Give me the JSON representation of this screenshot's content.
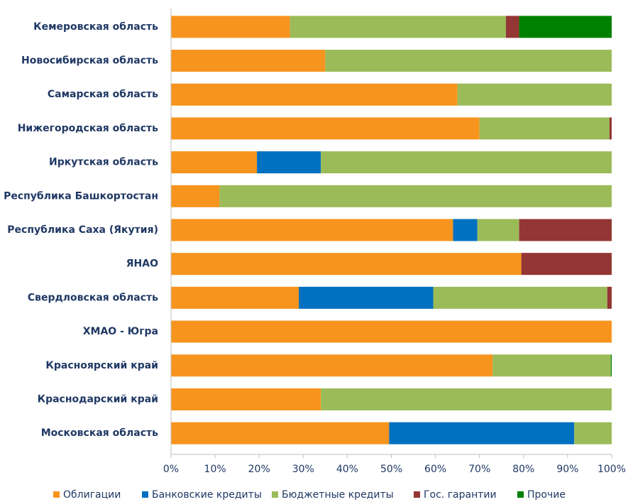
{
  "chart_data": {
    "type": "stacked_barh",
    "categories": [
      "Кемеровская область",
      "Новосибирская область",
      "Самарская область",
      "Нижегородская область",
      "Иркутская область",
      "Республика Башкортостан",
      "Республика Саха (Якутия)",
      "ЯНАО",
      "Свердловская область",
      "ХМАО - Югра",
      "Красноярский край",
      "Краснодарский край",
      "Московская область"
    ],
    "series": [
      {
        "name": "Облигации",
        "color": "#f7941d",
        "values": [
          27,
          35,
          65,
          70,
          19.5,
          11,
          64,
          79.5,
          29,
          100,
          73,
          34,
          49.5
        ]
      },
      {
        "name": "Банковские кредиты",
        "color": "#0070c0",
        "values": [
          0,
          0,
          0,
          0,
          14.5,
          0,
          5.5,
          0,
          30.5,
          0,
          0,
          0,
          42
        ]
      },
      {
        "name": "Бюджетные кредиты",
        "color": "#9bbb59",
        "values": [
          49,
          65,
          35,
          29.5,
          66,
          89,
          9.5,
          0,
          39.5,
          0,
          26.8,
          66,
          8.5
        ]
      },
      {
        "name": "Гос. гарантии",
        "color": "#943634",
        "values": [
          3,
          0,
          0,
          0.5,
          0,
          0,
          21,
          20.5,
          1,
          0,
          0,
          0,
          0
        ]
      },
      {
        "name": "Прочие",
        "color": "#008000",
        "values": [
          21,
          0,
          0,
          0,
          0,
          0,
          0,
          0,
          0,
          0,
          0.2,
          0,
          0
        ]
      }
    ],
    "xlim": [
      0,
      100
    ],
    "xticks": [
      {
        "value": 0,
        "label": "0%"
      },
      {
        "value": 10,
        "label": "10%"
      },
      {
        "value": 20,
        "label": "20%"
      },
      {
        "value": 30,
        "label": "30%"
      },
      {
        "value": 40,
        "label": "40%"
      },
      {
        "value": 50,
        "label": "50%"
      },
      {
        "value": 60,
        "label": "60%"
      },
      {
        "value": 70,
        "label": "70%"
      },
      {
        "value": 80,
        "label": "80%"
      },
      {
        "value": 90,
        "label": "90%"
      },
      {
        "value": 100,
        "label": "100%"
      }
    ],
    "legend": "bottom"
  }
}
